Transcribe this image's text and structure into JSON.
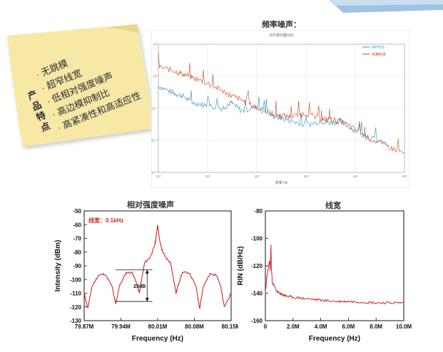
{
  "features": {
    "label_chars": [
      "产",
      "品",
      "特",
      "点"
    ],
    "items": [
      "· 无跳模",
      "· 超窄线宽",
      "· 低相对强度噪声",
      "· 高边模抑制比",
      "· 高紧凑性和高适应性"
    ]
  },
  "freq_noise": {
    "heading": "频率噪声：",
    "inner_title": "光纤激光器对比",
    "xlabel": "频率 Hz",
    "legend": [
      "NP*X15",
      "东腾科技"
    ],
    "colors": [
      "#3a8fb7",
      "#c8492a"
    ]
  },
  "rin_panel": {
    "heading": "相对强度噪声",
    "annotation": "线宽：0.1kHz",
    "marker_label": "23dB"
  },
  "linewidth_panel": {
    "heading": "线宽"
  },
  "chart_data": [
    {
      "type": "line",
      "title": "光纤激光器对比",
      "xlabel": "频率 Hz",
      "ylabel": "",
      "xscale": "log",
      "yscale": "log",
      "xlim": [
        1,
        100000
      ],
      "ylim": [
        0.001,
        10
      ],
      "x_ticks": [
        "10⁰",
        "10¹",
        "10²",
        "10³",
        "10⁴",
        "10⁵"
      ],
      "y_ticks": [
        "10¹",
        "10⁰",
        "10⁻¹",
        "10⁻²",
        "10⁻³"
      ],
      "grid": true,
      "legend_position": "top-right",
      "series": [
        {
          "name": "NP*X15",
          "x": [
            1,
            2,
            3,
            5,
            10,
            20,
            30,
            50,
            100,
            200,
            300,
            500,
            1000,
            2000,
            3000,
            5000,
            10000,
            20000,
            50000
          ],
          "y": [
            0.5,
            0.3,
            0.25,
            0.15,
            0.12,
            0.1,
            0.15,
            0.08,
            0.12,
            0.06,
            0.05,
            0.04,
            0.03,
            0.04,
            0.035,
            0.04,
            0.02,
            0.012,
            0.007
          ]
        },
        {
          "name": "东腾科技",
          "x": [
            1,
            2,
            3,
            5,
            10,
            20,
            30,
            50,
            100,
            200,
            300,
            500,
            1000,
            2000,
            3000,
            5000,
            10000,
            20000,
            50000,
            100000
          ],
          "y": [
            2,
            1.5,
            1.2,
            0.9,
            0.6,
            0.35,
            0.25,
            0.18,
            0.1,
            0.07,
            0.06,
            0.055,
            0.07,
            0.045,
            0.045,
            0.04,
            0.022,
            0.011,
            0.006,
            0.004
          ]
        }
      ]
    },
    {
      "type": "line",
      "title": "相对强度噪声",
      "xlabel": "Frequency (Hz)",
      "ylabel": "Intensity (dBm)",
      "xlim": [
        79.87,
        80.15
      ],
      "ylim": [
        -130,
        -50
      ],
      "x_ticks": [
        "79.87M",
        "79.94M",
        "80.01M",
        "80.08M",
        "80.15M"
      ],
      "y_ticks": [
        "-50",
        "-60",
        "-70",
        "-80",
        "-90",
        "-100",
        "-110",
        "-120",
        "-130"
      ],
      "series": [
        {
          "name": "",
          "x": [
            79.87,
            79.877,
            79.885,
            79.897,
            79.91,
            79.923,
            79.93,
            79.937,
            79.95,
            79.962,
            79.97,
            79.975,
            79.985,
            79.995,
            80.002,
            80.006,
            80.01,
            80.014,
            80.018,
            80.025,
            80.035,
            80.045,
            80.05,
            80.057,
            80.07,
            80.083,
            80.09,
            80.097,
            80.11,
            80.123,
            80.13,
            80.137,
            80.15
          ],
          "y": [
            -110,
            -121,
            -105,
            -97,
            -96,
            -105,
            -118,
            -105,
            -95,
            -95,
            -103,
            -110,
            -88,
            -84,
            -78,
            -72,
            -60,
            -72,
            -78,
            -84,
            -88,
            -110,
            -103,
            -95,
            -95,
            -105,
            -121,
            -105,
            -96,
            -97,
            -105,
            -120,
            -110
          ]
        }
      ]
    },
    {
      "type": "line",
      "title": "线宽",
      "xlabel": "Frequency (Hz)",
      "ylabel": "RIN (dB/Hz)",
      "xlim": [
        0,
        10
      ],
      "ylim": [
        -160,
        -80
      ],
      "x_unit": "M",
      "x_ticks": [
        "0",
        "2.0M",
        "4.0M",
        "6.0M",
        "8.0M",
        "10.0M"
      ],
      "y_ticks": [
        "-80",
        "-100",
        "-120",
        "-140",
        "-160"
      ],
      "series": [
        {
          "name": "",
          "x": [
            0,
            0.05,
            0.1,
            0.15,
            0.2,
            0.25,
            0.3,
            0.35,
            0.4,
            0.45,
            0.5,
            0.6,
            0.7,
            0.8,
            0.9,
            1.0,
            1.2,
            1.5,
            2.0,
            3.0,
            4.0,
            5.0,
            6.0,
            7.0,
            8.0,
            9.0,
            10.0
          ],
          "y": [
            -140,
            -135,
            -128,
            -126,
            -122,
            -120,
            -116,
            -124,
            -105,
            -124,
            -132,
            -134,
            -136,
            -138,
            -139,
            -140,
            -141,
            -142,
            -143,
            -144,
            -145,
            -146,
            -146,
            -146.5,
            -147,
            -147,
            -147
          ]
        }
      ]
    }
  ]
}
